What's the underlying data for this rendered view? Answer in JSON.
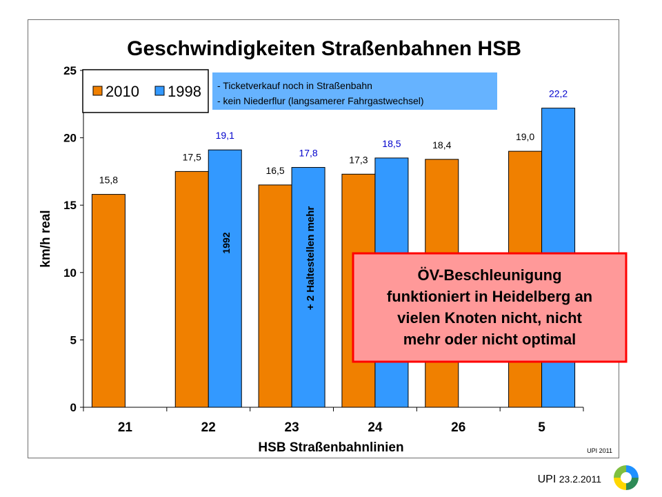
{
  "chart_data": {
    "type": "bar",
    "title": "Geschwindigkeiten Straßenbahnen HSB",
    "xlabel": "HSB Straßenbahnlinien",
    "ylabel": "km/h real",
    "ylim": [
      0,
      25
    ],
    "yticks": [
      0,
      5,
      10,
      15,
      20,
      25
    ],
    "categories": [
      "21",
      "22",
      "23",
      "24",
      "26",
      "5"
    ],
    "series": [
      {
        "name": "2010",
        "color": "#f08000",
        "label_color": "#000000",
        "values": [
          15.8,
          17.5,
          16.5,
          17.3,
          18.4,
          19.0
        ],
        "labels": [
          "15,8",
          "17,5",
          "16,5",
          "17,3",
          "18,4",
          "19,0"
        ]
      },
      {
        "name": "1998",
        "color": "#3399ff",
        "label_color": "#0000cc",
        "values": [
          null,
          19.1,
          17.8,
          18.5,
          null,
          22.2
        ],
        "labels": [
          "",
          "19,1",
          "17,8",
          "18,5",
          "",
          "22,2"
        ]
      }
    ],
    "legend": "top-left",
    "grid": false
  },
  "annotations": {
    "ticket_note_1": "- Ticketverkauf noch in Straßenbahn",
    "ticket_note_2": "- kein Niederflur (langsamerer Fahrgastwechsel)",
    "note_1992": "1992",
    "note_stops": "+ 2 Haltestellen mehr",
    "callout_line_1": "ÖV-Beschleunigung",
    "callout_line_2": "funktioniert in Heidelberg an",
    "callout_line_3": "vielen Knoten nicht, nicht",
    "callout_line_4": "mehr oder nicht optimal",
    "source_small": "UPI 2011"
  },
  "footer": {
    "org": "UPI",
    "date": "23.2.2011"
  },
  "colors": {
    "callout_fill": "#ff9999",
    "callout_border": "#ff0000",
    "note_fill": "#66b3ff"
  }
}
